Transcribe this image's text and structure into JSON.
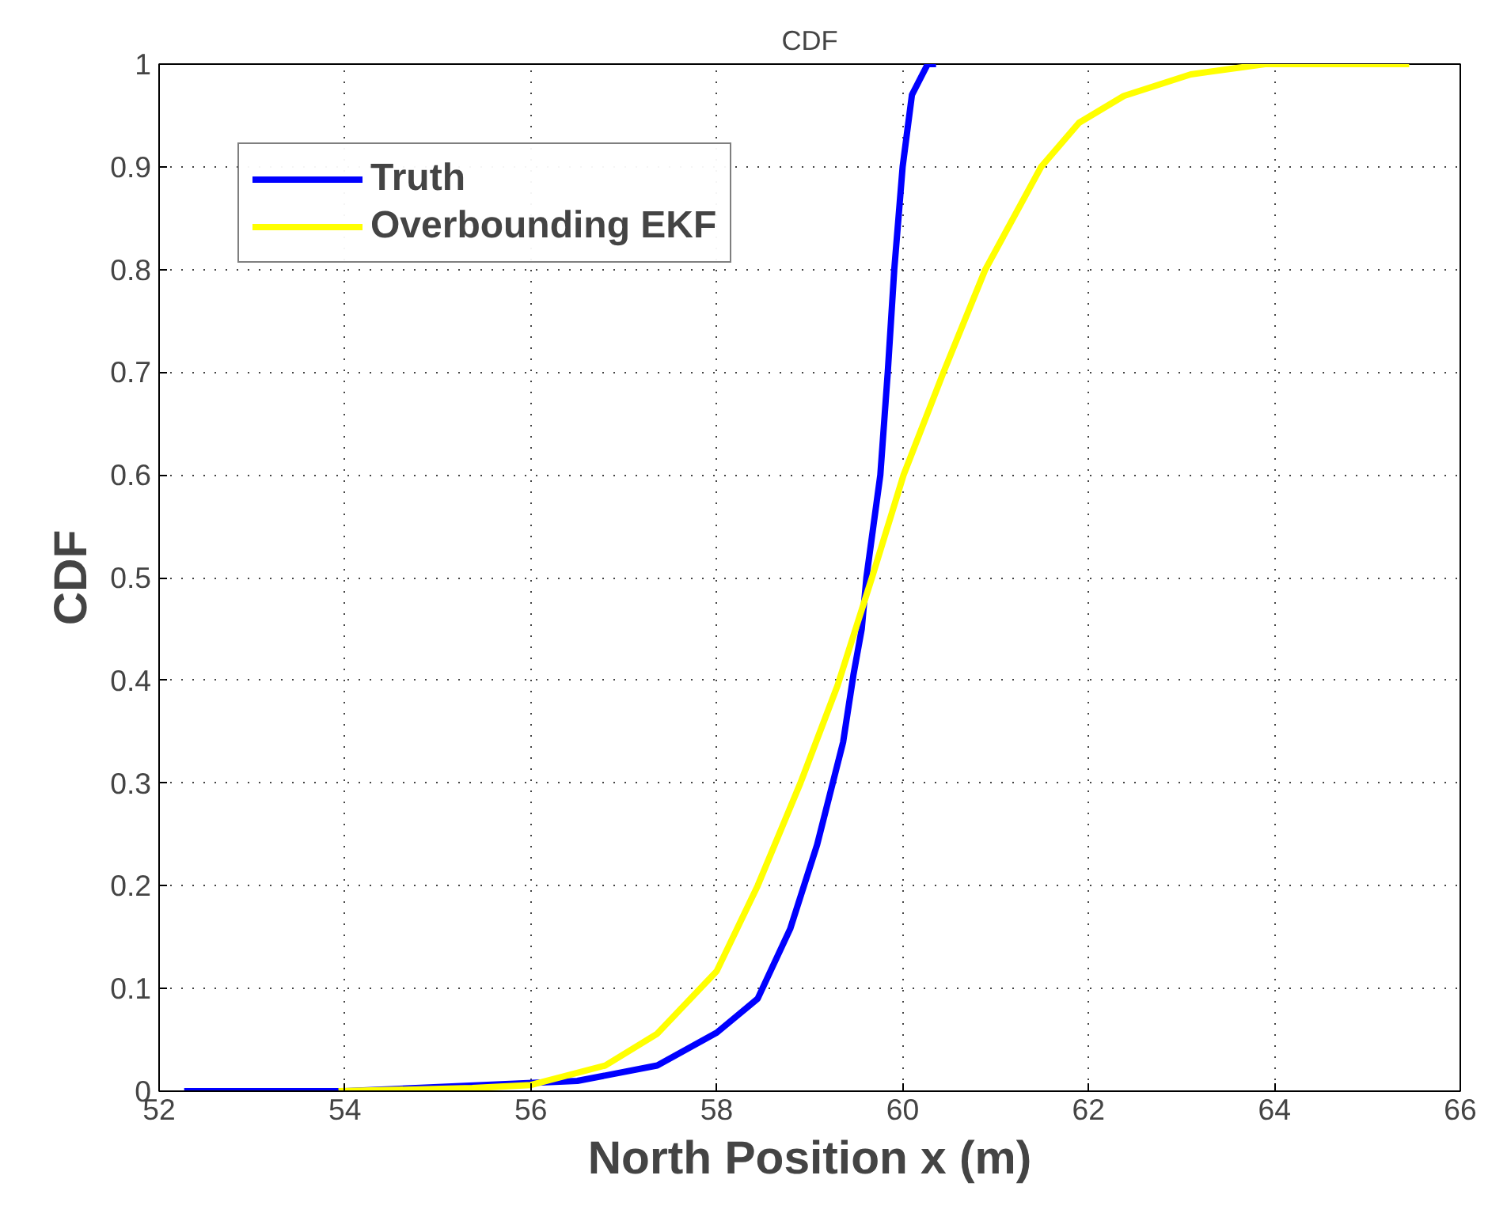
{
  "chart_data": {
    "type": "line",
    "title": "CDF",
    "xlabel": "North Position x (m)",
    "ylabel": "CDF",
    "xlim": [
      52,
      66
    ],
    "ylim": [
      0,
      1
    ],
    "xticks": [
      52,
      54,
      56,
      58,
      60,
      62,
      64,
      66
    ],
    "yticks": [
      0,
      0.1,
      0.2,
      0.3,
      0.4,
      0.5,
      0.6,
      0.7,
      0.8,
      0.9,
      1
    ],
    "grid": true,
    "legend": "top left",
    "line_style": "solid",
    "marker": "none",
    "series": [
      {
        "name": "Truth",
        "color": "#0000ff",
        "x": [
          52.27,
          54,
          56.5,
          57.36,
          58,
          58.44,
          58.79,
          59.08,
          59.36,
          59.47,
          59.56,
          59.61,
          59.76,
          59.84,
          59.91,
          60.0,
          60.1,
          60.27,
          60.36
        ],
        "values": [
          0,
          0,
          0.01,
          0.025,
          0.057,
          0.09,
          0.158,
          0.24,
          0.34,
          0.405,
          0.45,
          0.5,
          0.6,
          0.7,
          0.8,
          0.9,
          0.97,
          1,
          1
        ]
      },
      {
        "name": "Overbounding EKF",
        "color": "#ffff00",
        "x": [
          53.93,
          55.37,
          56,
          56.8,
          57.36,
          58,
          58.44,
          58.9,
          59.3,
          59.67,
          60.01,
          60.44,
          60.89,
          61.49,
          61.9,
          62.38,
          63.1,
          63.9,
          65.45
        ],
        "values": [
          0,
          0.003,
          0.006,
          0.025,
          0.056,
          0.117,
          0.2,
          0.3,
          0.395,
          0.5,
          0.6,
          0.7,
          0.8,
          0.9,
          0.943,
          0.969,
          0.99,
          1,
          1
        ]
      }
    ]
  }
}
